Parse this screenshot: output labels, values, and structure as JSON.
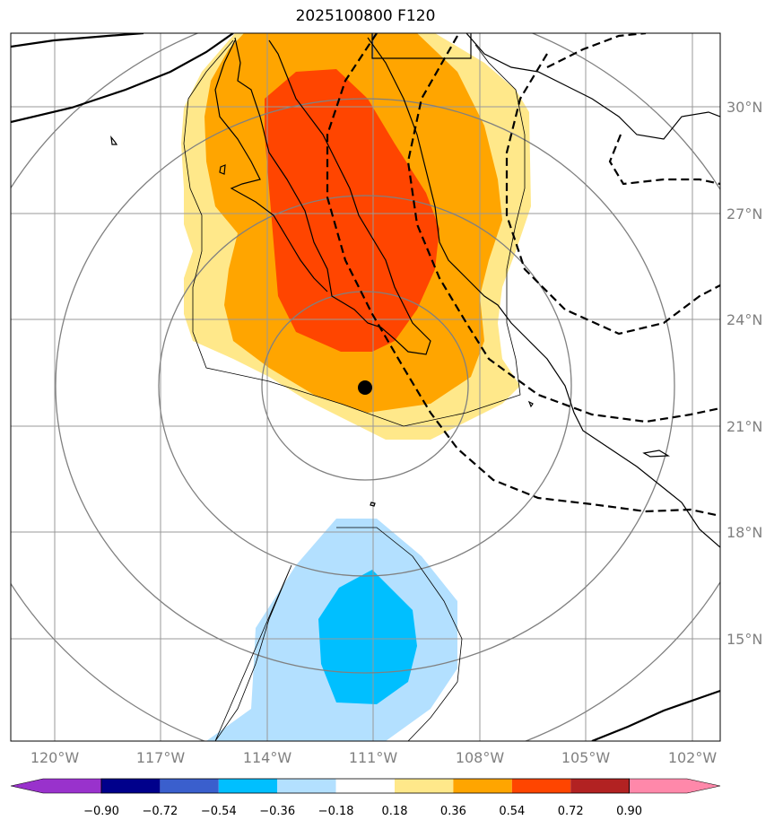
{
  "title": "2025100800 F120",
  "map": {
    "lat_labels": [
      "30°N",
      "27°N",
      "24°N",
      "21°N",
      "18°N",
      "15°N"
    ],
    "lon_labels": [
      "120°W",
      "117°W",
      "114°W",
      "111°W",
      "108°W",
      "105°W",
      "102°W"
    ],
    "storm_marker": "storm-center",
    "colors": {
      "light_yellow": "#ffe88a",
      "orange": "#ffa500",
      "red_orange": "#ff4500",
      "light_blue": "#b3e0ff",
      "cyan": "#00bfff",
      "grid": "#999999",
      "range_ring": "#808080"
    }
  },
  "colorbar": {
    "labels": [
      "−0.90",
      "−0.72",
      "−0.54",
      "−0.36",
      "−0.18",
      "0.18",
      "0.36",
      "0.54",
      "0.72",
      "0.90"
    ],
    "colors": [
      "#9932cc",
      "#00008b",
      "#3a5fcd",
      "#00bfff",
      "#b3e0ff",
      "#ffffff",
      "#ffe88a",
      "#ffa500",
      "#ff4500",
      "#b22222",
      "#ff88aa"
    ]
  }
}
